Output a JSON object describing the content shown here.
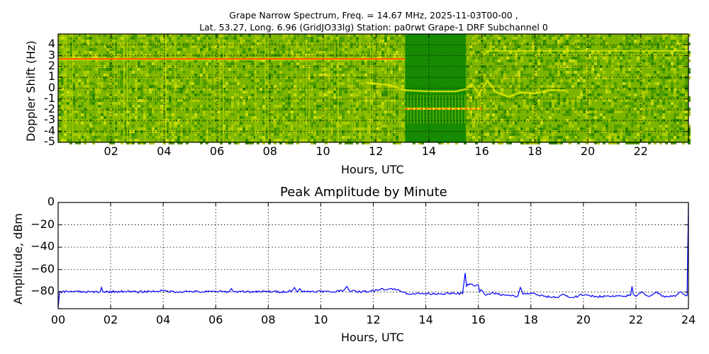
{
  "figure": {
    "title_line1": "Grape Narrow Spectrum, Freq. = 14.67 MHz, 2025-11-03T00-00 ,",
    "title_line2": "Lat.  53.27, Long.   6.96 (GridJO33lg) Station: pa0rwt Grape-1 DRF Subchannel 0"
  },
  "colors": {
    "spectrogram_bg": "#7cb500",
    "spectrogram_dark": "#168a00",
    "carrier_red": "#ff3300",
    "carrier_yellow": "#f5f000",
    "line_blue": "#0000ff",
    "grid": "#000000"
  },
  "chart_data": [
    {
      "type": "heatmap",
      "title": "",
      "xlabel": "Hours, UTC",
      "ylabel": "Doppler Shift (Hz)",
      "xlim": [
        0,
        23.8
      ],
      "ylim": [
        -5,
        5
      ],
      "xticks": [
        "02",
        "04",
        "06",
        "08",
        "10",
        "12",
        "14",
        "16",
        "18",
        "20",
        "22"
      ],
      "yticks": [
        "4",
        "3",
        "2",
        "1",
        "0",
        "-1",
        "-2",
        "-3",
        "-4",
        "-5"
      ],
      "grid": true,
      "features": [
        {
          "name": "carrier trace (red/orange)",
          "x_start": 0,
          "x_end": 13.1,
          "doppler_hz": 2.7
        },
        {
          "name": "dark band (no signal)",
          "x_start": 13.1,
          "x_end": 15.4
        },
        {
          "name": "pulsed carrier (red)",
          "x_start": 13.1,
          "x_end": 16.0,
          "doppler_hz": -1.9
        },
        {
          "name": "weak ionospheric trace (yellow)",
          "x_start": 11.5,
          "x_end": 19.2,
          "doppler_hz": -0.2
        },
        {
          "name": "weak carrier (yellow)",
          "x_start": 16.1,
          "x_end": 23.8,
          "doppler_hz": 3.5
        }
      ]
    },
    {
      "type": "line",
      "title": "Peak Amplitude by Minute",
      "xlabel": "Hours, UTC",
      "ylabel": "Amplitude, dBm",
      "xlim": [
        0,
        24
      ],
      "ylim": [
        -95,
        0
      ],
      "xticks": [
        "00",
        "02",
        "04",
        "06",
        "08",
        "10",
        "12",
        "14",
        "16",
        "18",
        "20",
        "22",
        "24"
      ],
      "yticks": [
        "0",
        "−20",
        "−40",
        "−60",
        "−80"
      ],
      "grid": true,
      "series": [
        {
          "name": "Peak amplitude",
          "x": [
            0,
            0.05,
            0.5,
            1.0,
            1.6,
            1.65,
            1.7,
            2.5,
            3.0,
            3.5,
            4.0,
            4.5,
            5.0,
            5.5,
            6.0,
            6.5,
            6.6,
            6.7,
            7.0,
            7.5,
            8.0,
            8.5,
            8.9,
            9.0,
            9.1,
            9.2,
            9.3,
            9.5,
            10.0,
            10.5,
            10.9,
            11.0,
            11.1,
            11.5,
            12.0,
            12.3,
            12.5,
            12.7,
            12.9,
            13.1,
            13.3,
            13.5,
            14.0,
            14.5,
            15.0,
            15.4,
            15.5,
            15.55,
            15.6,
            15.8,
            16.0,
            16.05,
            16.1,
            16.3,
            16.5,
            17.0,
            17.5,
            17.6,
            17.7,
            18.0,
            18.3,
            18.5,
            19.0,
            19.2,
            19.5,
            19.8,
            19.9,
            20.0,
            20.5,
            21.0,
            21.5,
            21.8,
            21.85,
            21.9,
            22.0,
            22.2,
            22.5,
            22.8,
            23.0,
            23.2,
            23.5,
            23.7,
            23.8,
            23.95,
            24.0
          ],
          "y": [
            -95,
            -80,
            -79.5,
            -80,
            -80,
            -76,
            -80,
            -79.5,
            -80,
            -79.5,
            -79,
            -80,
            -79.5,
            -80,
            -79.5,
            -80,
            -77,
            -80,
            -79.5,
            -80,
            -79.5,
            -80,
            -79,
            -76,
            -80,
            -77,
            -80,
            -79.5,
            -79.5,
            -80,
            -78,
            -75,
            -79,
            -80,
            -79,
            -77,
            -78,
            -77,
            -78,
            -80,
            -81.5,
            -81.5,
            -81.5,
            -81.5,
            -81.5,
            -81.5,
            -63,
            -75,
            -73,
            -74,
            -74,
            -80,
            -78,
            -83,
            -81,
            -83,
            -84,
            -76,
            -82,
            -81,
            -83,
            -84,
            -85,
            -82,
            -85,
            -84,
            -82,
            -83,
            -84,
            -84,
            -84,
            -83,
            -75,
            -82,
            -84,
            -80,
            -84,
            -80,
            -84,
            -84,
            -84,
            -80,
            -82,
            -83,
            -1
          ]
        }
      ]
    }
  ]
}
